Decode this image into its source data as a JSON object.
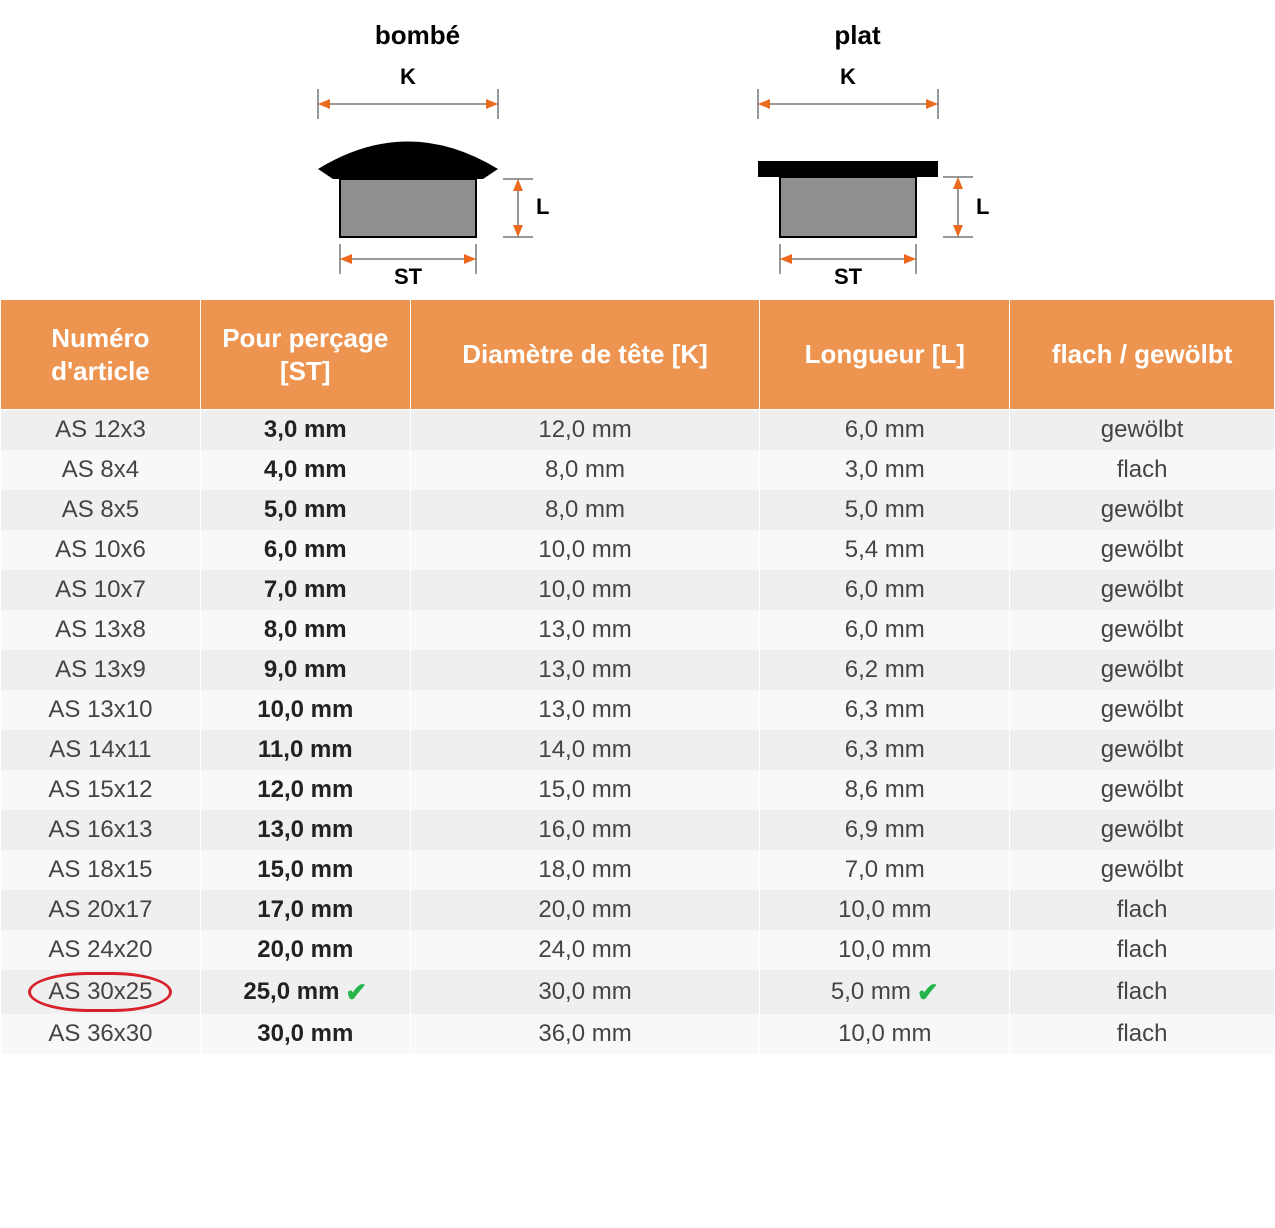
{
  "diagrams": {
    "bombe": {
      "title": "bombé",
      "k_label": "K",
      "l_label": "L",
      "st_label": "ST"
    },
    "plat": {
      "title": "plat",
      "k_label": "K",
      "l_label": "L",
      "st_label": "ST"
    }
  },
  "colors": {
    "header_bg": "#ed9450",
    "header_text": "#ffffff",
    "row_odd": "#efefef",
    "row_even": "#f8f8f8",
    "circle": "#d8202a",
    "check": "#26b54a",
    "arrow": "#eb6a1e",
    "dim_line": "#333333",
    "cap_black": "#000000",
    "cap_grey": "#8f8f8f"
  },
  "table": {
    "columns": [
      "Numéro d'article",
      "Pour perçage [ST]",
      "Diamètre de tête [K]",
      "Longueur [L]",
      "flach / gewölbt"
    ],
    "highlighted_index": 14,
    "rows": [
      {
        "article": "AS 12x3",
        "st": "3,0 mm",
        "k": "12,0 mm",
        "l": "6,0 mm",
        "type": "gewölbt"
      },
      {
        "article": "AS 8x4",
        "st": "4,0 mm",
        "k": "8,0 mm",
        "l": "3,0 mm",
        "type": "flach"
      },
      {
        "article": "AS 8x5",
        "st": "5,0 mm",
        "k": "8,0 mm",
        "l": "5,0 mm",
        "type": "gewölbt"
      },
      {
        "article": "AS 10x6",
        "st": "6,0 mm",
        "k": "10,0 mm",
        "l": "5,4 mm",
        "type": "gewölbt"
      },
      {
        "article": "AS 10x7",
        "st": "7,0 mm",
        "k": "10,0 mm",
        "l": "6,0 mm",
        "type": "gewölbt"
      },
      {
        "article": "AS 13x8",
        "st": "8,0 mm",
        "k": "13,0 mm",
        "l": "6,0 mm",
        "type": "gewölbt"
      },
      {
        "article": "AS 13x9",
        "st": "9,0 mm",
        "k": "13,0 mm",
        "l": "6,2 mm",
        "type": "gewölbt"
      },
      {
        "article": "AS 13x10",
        "st": "10,0 mm",
        "k": "13,0 mm",
        "l": "6,3 mm",
        "type": "gewölbt"
      },
      {
        "article": "AS 14x11",
        "st": "11,0 mm",
        "k": "14,0 mm",
        "l": "6,3 mm",
        "type": "gewölbt"
      },
      {
        "article": "AS 15x12",
        "st": "12,0 mm",
        "k": "15,0 mm",
        "l": "8,6 mm",
        "type": "gewölbt"
      },
      {
        "article": "AS 16x13",
        "st": "13,0 mm",
        "k": "16,0 mm",
        "l": "6,9 mm",
        "type": "gewölbt"
      },
      {
        "article": "AS 18x15",
        "st": "15,0 mm",
        "k": "18,0 mm",
        "l": "7,0 mm",
        "type": "gewölbt"
      },
      {
        "article": "AS 20x17",
        "st": "17,0 mm",
        "k": "20,0 mm",
        "l": "10,0 mm",
        "type": "flach"
      },
      {
        "article": "AS 24x20",
        "st": "20,0 mm",
        "k": "24,0 mm",
        "l": "10,0 mm",
        "type": "flach"
      },
      {
        "article": "AS 30x25",
        "st": "25,0 mm",
        "k": "30,0 mm",
        "l": "5,0 mm",
        "type": "flach",
        "st_check": true,
        "l_check": true
      },
      {
        "article": "AS 36x30",
        "st": "30,0 mm",
        "k": "36,0 mm",
        "l": "10,0 mm",
        "type": "flach"
      }
    ]
  }
}
